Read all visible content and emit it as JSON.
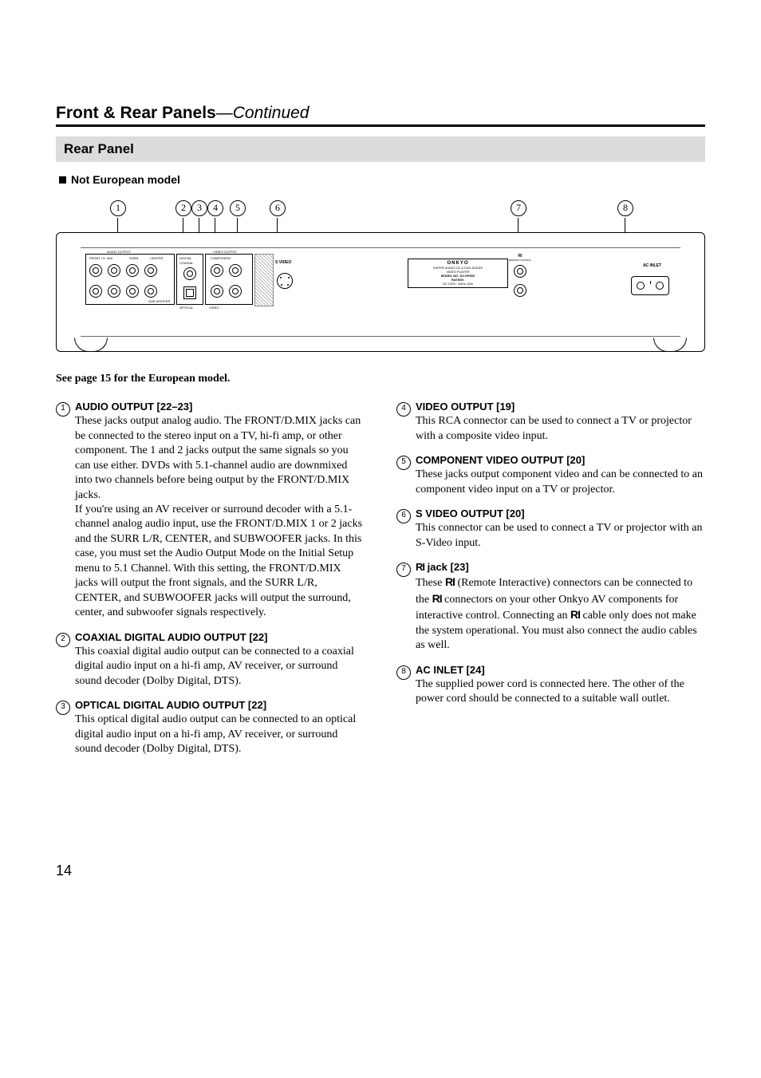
{
  "header": {
    "title": "Front & Rear Panels",
    "continued": "—Continued"
  },
  "section": {
    "title": "Rear Panel",
    "sub": "Not European model"
  },
  "diagram": {
    "labels": [
      "1",
      "2",
      "3",
      "4",
      "5",
      "6",
      "7",
      "8"
    ],
    "audio_output": "AUDIO OUTPUT",
    "front_dmix": "FRONT / D. MIX",
    "surr": "SURR",
    "center": "CENTER",
    "digital": "DIGITAL",
    "coaxial": "COAXIAL",
    "optical": "OPTICAL",
    "video_output": "VIDEO OUTPUT",
    "component": "COMPONENT",
    "svideo": "S VIDEO",
    "video": "VIDEO",
    "woofer": "SUB WOOFER",
    "onkyo": "ONKYO",
    "model_line1": "SUPER AUDIO CD & DVD AUDIO/",
    "model_line2": "VIDEO PLAYER",
    "model_no": "MODEL NO. DV-SP502",
    "rating": "RATING:",
    "rating2": "AC 120V~   60Hz   11W",
    "ri": "RI",
    "remote": "REMOTE CONTROL",
    "ac_inlet": "AC INLET"
  },
  "caption": "See page 15 for the European model.",
  "left_items": [
    {
      "num": "1",
      "title": "AUDIO OUTPUT [22–23]",
      "desc": "These jacks output analog audio. The FRONT/D.MIX jacks can be connected to the stereo input on a TV, hi-fi amp, or other component. The 1 and 2 jacks output the same signals so you can use either. DVDs with 5.1-channel audio are downmixed into two channels before being output by the FRONT/D.MIX jacks.\nIf you're using an AV receiver or surround decoder with a 5.1-channel analog audio input, use the FRONT/D.MIX 1 or 2 jacks and the SURR L/R, CENTER, and SUBWOOFER jacks. In this case, you must set the Audio Output Mode on the Initial Setup menu to 5.1 Channel. With this setting, the FRONT/D.MIX jacks will output the front signals, and the SURR L/R, CENTER, and SUBWOOFER jacks will output the surround, center, and subwoofer signals respectively."
    },
    {
      "num": "2",
      "title": "COAXIAL DIGITAL AUDIO OUTPUT [22]",
      "desc": "This coaxial digital audio output can be connected to a coaxial digital audio input on a hi-fi amp, AV receiver, or surround sound decoder (Dolby Digital, DTS)."
    },
    {
      "num": "3",
      "title": "OPTICAL DIGITAL AUDIO OUTPUT [22]",
      "desc": "This optical digital audio output can be connected to an optical digital audio input on a hi-fi amp, AV receiver, or surround sound decoder (Dolby Digital, DTS)."
    }
  ],
  "right_items": [
    {
      "num": "4",
      "title": "VIDEO OUTPUT [19]",
      "desc": "This RCA connector can be used to connect a TV or projector with a composite video input."
    },
    {
      "num": "5",
      "title": "COMPONENT VIDEO OUTPUT [20]",
      "desc": "These jacks output component video and can be connected to an component video input on a TV or projector."
    },
    {
      "num": "6",
      "title": "S VIDEO OUTPUT [20]",
      "desc": "This connector can be used to connect a TV or projector with an S-Video input."
    },
    {
      "num": "7",
      "title": " jack [23]",
      "ri_prefix": true,
      "desc_html": "These <span class='ri-glyph'>RI</span> (Remote Interactive) connectors can be connected to the <span class='ri-glyph'>RI</span> connectors on your other Onkyo AV components for interactive control. Connecting an <span class='ri-glyph'>RI</span> cable only does not make the system operational. You must also connect the audio cables as well."
    },
    {
      "num": "8",
      "title": "AC INLET [24]",
      "desc": "The supplied power cord is connected here. The other of the power cord should be connected to a suitable wall outlet."
    }
  ],
  "page_number": "14"
}
